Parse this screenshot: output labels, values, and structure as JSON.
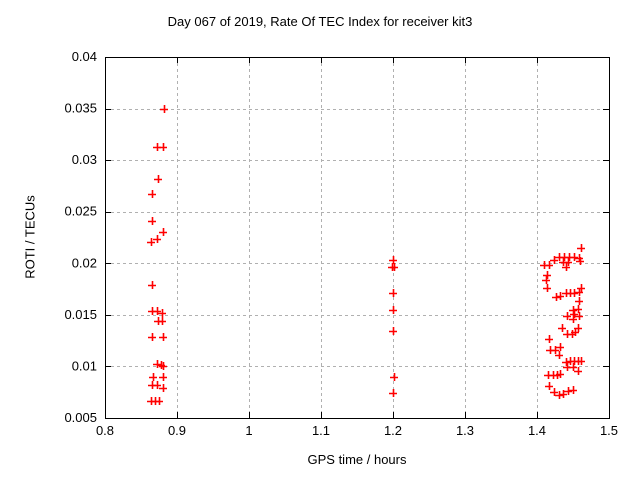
{
  "chart_data": {
    "type": "scatter",
    "title": "Day 067 of 2019, Rate Of TEC Index for receiver kit3",
    "xlabel": "GPS time / hours",
    "ylabel": "ROTI / TECUs",
    "xlim": [
      0.8,
      1.5
    ],
    "ylim": [
      0.005,
      0.04
    ],
    "xticks": [
      0.8,
      0.9,
      1.0,
      1.1,
      1.2,
      1.3,
      1.4,
      1.5
    ],
    "xtick_labels": [
      "0.8",
      "0.9",
      "1",
      "1.1",
      "1.2",
      "1.3",
      "1.4",
      "1.5"
    ],
    "yticks": [
      0.005,
      0.01,
      0.015,
      0.02,
      0.025,
      0.03,
      0.035,
      0.04
    ],
    "ytick_labels": [
      "0.005",
      "0.01",
      "0.015",
      "0.02",
      "0.025",
      "0.03",
      "0.035",
      "0.04"
    ],
    "grid": true,
    "legend": "none",
    "marker": "plus",
    "marker_color": "#ff0000",
    "series": [
      {
        "name": "ROTI",
        "points": [
          [
            0.882,
            0.035
          ],
          [
            0.872,
            0.0313
          ],
          [
            0.881,
            0.0313
          ],
          [
            0.874,
            0.0282
          ],
          [
            0.865,
            0.0267
          ],
          [
            0.865,
            0.0241
          ],
          [
            0.881,
            0.023
          ],
          [
            0.872,
            0.0224
          ],
          [
            0.864,
            0.0221
          ],
          [
            0.865,
            0.0179
          ],
          [
            0.865,
            0.0154
          ],
          [
            0.872,
            0.0154
          ],
          [
            0.879,
            0.0152
          ],
          [
            0.874,
            0.0144
          ],
          [
            0.879,
            0.0144
          ],
          [
            0.865,
            0.0129
          ],
          [
            0.881,
            0.0129
          ],
          [
            0.872,
            0.0102
          ],
          [
            0.878,
            0.0101
          ],
          [
            0.881,
            0.01
          ],
          [
            0.867,
            0.009
          ],
          [
            0.881,
            0.009
          ],
          [
            0.865,
            0.0082
          ],
          [
            0.872,
            0.0082
          ],
          [
            0.881,
            0.0079
          ],
          [
            0.864,
            0.0066
          ],
          [
            0.869,
            0.0066
          ],
          [
            0.875,
            0.0066
          ],
          [
            1.2,
            0.0203
          ],
          [
            1.199,
            0.0196
          ],
          [
            1.202,
            0.0196
          ],
          [
            1.2,
            0.0171
          ],
          [
            1.2,
            0.0155
          ],
          [
            1.2,
            0.0134
          ],
          [
            1.201,
            0.009
          ],
          [
            1.2,
            0.0074
          ],
          [
            1.461,
            0.0215
          ],
          [
            1.43,
            0.0206
          ],
          [
            1.437,
            0.0206
          ],
          [
            1.444,
            0.0206
          ],
          [
            1.451,
            0.0206
          ],
          [
            1.458,
            0.0205
          ],
          [
            1.423,
            0.0203
          ],
          [
            1.436,
            0.0201
          ],
          [
            1.443,
            0.0201
          ],
          [
            1.46,
            0.0202
          ],
          [
            1.41,
            0.0198
          ],
          [
            1.416,
            0.0198
          ],
          [
            1.44,
            0.0196
          ],
          [
            1.414,
            0.0189
          ],
          [
            1.412,
            0.0184
          ],
          [
            1.414,
            0.0176
          ],
          [
            1.461,
            0.0176
          ],
          [
            1.44,
            0.0171
          ],
          [
            1.446,
            0.0171
          ],
          [
            1.452,
            0.0171
          ],
          [
            1.458,
            0.0172
          ],
          [
            1.426,
            0.0167
          ],
          [
            1.432,
            0.0168
          ],
          [
            1.458,
            0.0163
          ],
          [
            1.45,
            0.0155
          ],
          [
            1.457,
            0.0156
          ],
          [
            1.451,
            0.0151
          ],
          [
            1.442,
            0.0149
          ],
          [
            1.458,
            0.0149
          ],
          [
            1.45,
            0.0146
          ],
          [
            1.435,
            0.0137
          ],
          [
            1.457,
            0.0137
          ],
          [
            1.442,
            0.0131
          ],
          [
            1.449,
            0.0131
          ],
          [
            1.453,
            0.0133
          ],
          [
            1.416,
            0.0127
          ],
          [
            1.432,
            0.0119
          ],
          [
            1.418,
            0.0116
          ],
          [
            1.425,
            0.0116
          ],
          [
            1.43,
            0.0111
          ],
          [
            1.44,
            0.0104
          ],
          [
            1.446,
            0.0105
          ],
          [
            1.451,
            0.0105
          ],
          [
            1.457,
            0.0105
          ],
          [
            1.461,
            0.0105
          ],
          [
            1.442,
            0.0099
          ],
          [
            1.45,
            0.0099
          ],
          [
            1.457,
            0.0096
          ],
          [
            1.415,
            0.0092
          ],
          [
            1.422,
            0.0092
          ],
          [
            1.428,
            0.0092
          ],
          [
            1.432,
            0.0093
          ],
          [
            1.416,
            0.0081
          ],
          [
            1.423,
            0.0075
          ],
          [
            1.43,
            0.0072
          ],
          [
            1.436,
            0.0073
          ],
          [
            1.443,
            0.0076
          ],
          [
            1.45,
            0.0077
          ]
        ]
      }
    ]
  },
  "colors": {
    "background": "#ffffff",
    "axis": "#000000",
    "grid": "#b0b0b0",
    "marker": "#ff0000",
    "text": "#000000"
  }
}
